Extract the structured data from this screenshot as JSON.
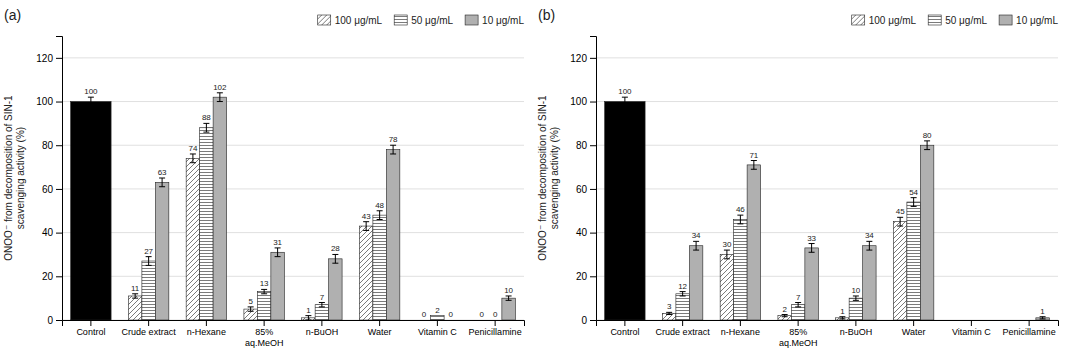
{
  "chart_data": [
    {
      "type": "bar",
      "title": "(a)",
      "categories": [
        "Control",
        "Crude extract",
        "n-Hexane",
        "85%\naq.MeOH",
        "n-BuOH",
        "Water",
        "Vitamin C",
        "Penicillamine"
      ],
      "series": [
        {
          "name": "100 μg/mL",
          "color": "white",
          "values": [
            null,
            11,
            74,
            5,
            1,
            43,
            0,
            0
          ],
          "errors": [
            null,
            1,
            2,
            1,
            1,
            2,
            0,
            0
          ]
        },
        {
          "name": "50 μg/mL",
          "color": "white",
          "values": [
            null,
            27,
            88,
            13,
            7,
            48,
            2,
            0
          ],
          "errors": [
            null,
            2,
            2,
            1,
            1,
            2,
            0,
            0
          ]
        },
        {
          "name": "10 μg/mL",
          "color": "#b0b0b0",
          "colors": [
            "black",
            "#b0b0b0",
            "#b0b0b0",
            "#b0b0b0",
            "#b0b0b0",
            "#b0b0b0",
            "#b0b0b0",
            "#b0b0b0"
          ],
          "values": [
            100,
            63,
            102,
            31,
            28,
            78,
            0,
            10
          ],
          "errors": [
            2,
            2,
            2,
            2,
            2,
            2,
            0,
            1
          ]
        }
      ],
      "ylabel": "ONOO⁻ from decomposition of SIN-1\nscavenging activity (%)",
      "ylim": [
        0,
        130
      ],
      "yticks": [
        0,
        20,
        40,
        60,
        80,
        100,
        120
      ],
      "grid": true,
      "legend": "upper right",
      "data_labels": true
    },
    {
      "type": "bar",
      "title": "(b)",
      "categories": [
        "Control",
        "Crude extract",
        "n-Hexane",
        "85%\naq.MeOH",
        "n-BuOH",
        "Water",
        "Vitamin C",
        "Penicillamine"
      ],
      "series": [
        {
          "name": "100 μg/mL",
          "color": "white",
          "values": [
            null,
            3,
            30,
            2,
            1,
            45,
            0,
            0
          ],
          "errors": [
            null,
            0.5,
            2,
            0.5,
            0.5,
            2,
            0,
            0
          ],
          "value_labels": [
            null,
            "3",
            "30",
            "2",
            "1",
            "45",
            null,
            null
          ]
        },
        {
          "name": "50 μg/mL",
          "color": "white",
          "values": [
            null,
            12,
            46,
            7,
            10,
            54,
            0,
            0
          ],
          "errors": [
            null,
            1,
            2,
            1,
            1,
            2,
            0,
            0
          ],
          "value_labels": [
            null,
            "12",
            "46",
            "7",
            "10",
            "54",
            null,
            null
          ]
        },
        {
          "name": "10 μg/mL",
          "color": "#b0b0b0",
          "colors": [
            "black",
            "#b0b0b0",
            "#b0b0b0",
            "#b0b0b0",
            "#b0b0b0",
            "#b0b0b0",
            "#b0b0b0",
            "#b0b0b0"
          ],
          "values": [
            100,
            34,
            71,
            33,
            34,
            80,
            0,
            1
          ],
          "errors": [
            2,
            2,
            2,
            2,
            2,
            2,
            0,
            0.5
          ],
          "value_labels": [
            "100",
            "34",
            "71",
            "33",
            "34",
            "80",
            null,
            "1"
          ]
        }
      ],
      "ylabel": "ONOO⁻ from decomposition of SIN-1\nscavenging activity (%)",
      "ylim": [
        0,
        130
      ],
      "yticks": [
        0,
        20,
        40,
        60,
        80,
        100,
        120
      ],
      "grid": true,
      "legend": "upper right",
      "data_labels": true
    }
  ]
}
